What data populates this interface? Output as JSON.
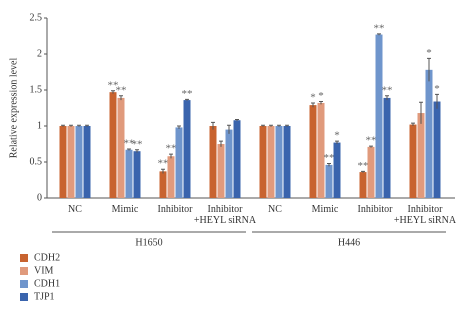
{
  "chart_data": {
    "type": "grouped-bar",
    "y_label": "Relative expression level",
    "categories": [
      "NC",
      "Mimic",
      "Inhibitor",
      "Inhibitor +HEYL siRNA",
      "NC",
      "Mimic",
      "Inhibitor",
      "Inhibitor +HEYL siRNA"
    ],
    "groups": [
      "H1650",
      "H446"
    ],
    "series": [
      {
        "name": "CDH2",
        "color": "#c8632f",
        "values": [
          1,
          1.47,
          0.37,
          1.0,
          1,
          1.29,
          0.36,
          1.02
        ],
        "errors": [
          0.01,
          0.02,
          0.03,
          0.05,
          0.01,
          0.03,
          0.01,
          0.02
        ],
        "significance": [
          null,
          "**",
          "**",
          null,
          null,
          "*",
          "**",
          null
        ]
      },
      {
        "name": "VIM",
        "color": "#e09a7c",
        "values": [
          1,
          1.39,
          0.58,
          0.75,
          1,
          1.32,
          0.71,
          1.18
        ],
        "errors": [
          0.01,
          0.03,
          0.03,
          0.04,
          0.01,
          0.02,
          0.01,
          0.15
        ],
        "significance": [
          null,
          "**",
          "**",
          null,
          null,
          "*",
          "**",
          null
        ]
      },
      {
        "name": "CDH1",
        "color": "#6f95cc",
        "values": [
          1,
          0.67,
          0.98,
          0.95,
          1,
          0.46,
          2.27,
          1.78
        ],
        "errors": [
          0.01,
          0.01,
          0.02,
          0.06,
          0.01,
          0.02,
          0.01,
          0.16
        ],
        "significance": [
          null,
          "**",
          null,
          null,
          null,
          "**",
          "**",
          "*"
        ]
      },
      {
        "name": "TJP1",
        "color": "#3a64ad",
        "values": [
          1,
          0.65,
          1.36,
          1.08,
          1,
          0.77,
          1.39,
          1.34
        ],
        "errors": [
          0.01,
          0.02,
          0.01,
          0.01,
          0.01,
          0.02,
          0.03,
          0.1
        ],
        "significance": [
          null,
          "**",
          "**",
          null,
          null,
          "*",
          "**",
          "*"
        ]
      }
    ],
    "ylim": [
      0,
      2.5
    ],
    "yticks": [
      0,
      {
        "value": 0.5,
        "label": "0.5"
      },
      1,
      {
        "value": 1.5,
        "label": "1.5"
      },
      2,
      {
        "value": 2.5,
        "label": "2.5"
      }
    ]
  }
}
